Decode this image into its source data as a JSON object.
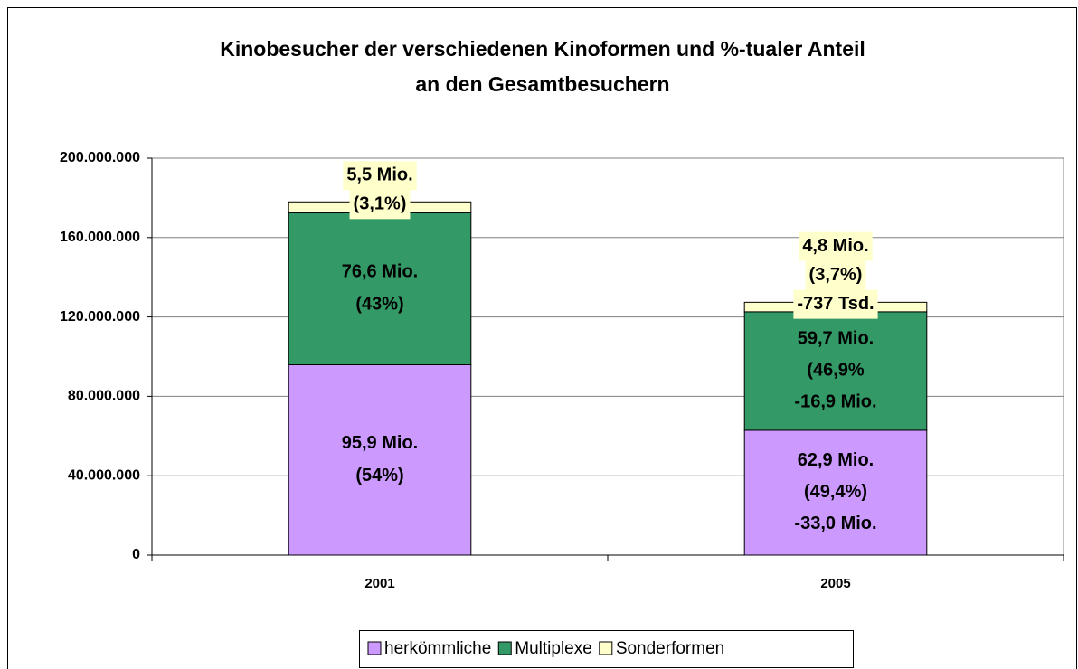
{
  "chart_data": {
    "type": "stacked_bar",
    "title": [
      "Kinobesucher der verschiedenen Kinoformen und %-tualer Anteil",
      "an den Gesamtbesuchern"
    ],
    "categories": [
      "2001",
      "2005"
    ],
    "series": [
      {
        "name": "herkömmliche",
        "color": "#cc99ff",
        "values": [
          95900000,
          62900000
        ],
        "value_labels": [
          "95,9 Mio.",
          "62,9 Mio."
        ],
        "share_labels": [
          "(54%)",
          "(49,4%)"
        ],
        "change_labels": [
          null,
          "-33,0 Mio."
        ]
      },
      {
        "name": "Multiplexe",
        "color": "#339966",
        "values": [
          76600000,
          59700000
        ],
        "value_labels": [
          "76,6 Mio.",
          "59,7 Mio."
        ],
        "share_labels": [
          "(43%)",
          "(46,9%"
        ],
        "change_labels": [
          null,
          "-16,9 Mio."
        ]
      },
      {
        "name": "Sonderformen",
        "color": "#ffffcc",
        "values": [
          5500000,
          4800000
        ],
        "value_labels": [
          "5,5 Mio.",
          "4,8 Mio."
        ],
        "share_labels": [
          "(3,1%)",
          "(3,7%)"
        ],
        "change_labels": [
          null,
          "-737 Tsd."
        ]
      }
    ],
    "ylim": [
      0,
      200000000
    ],
    "yticks": [
      0,
      {
        "value": 40000000,
        "label": "40.000.000"
      },
      {
        "value": 80000000,
        "label": "80.000.000"
      },
      {
        "value": 120000000,
        "label": "120.000.000"
      },
      {
        "value": 160000000,
        "label": "160.000.000"
      },
      {
        "value": 200000000,
        "label": "200.000.000"
      }
    ],
    "grid": true,
    "legend": "bottom"
  }
}
